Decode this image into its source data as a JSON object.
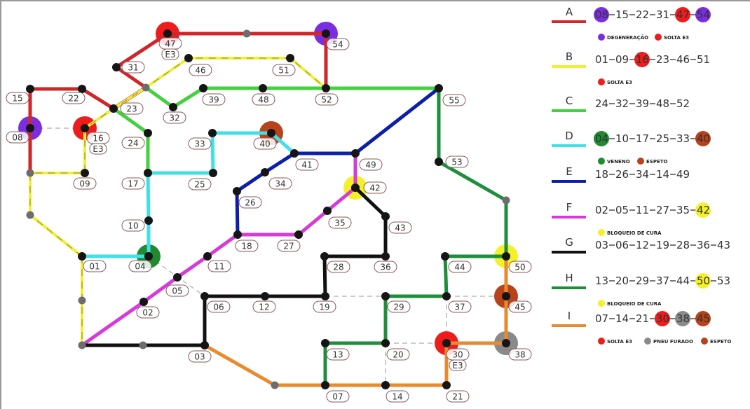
{
  "colors": {
    "A": "#d0262a",
    "B": "#f1ee3a",
    "C": "#43d13e",
    "D": "#3fe0e6",
    "E": "#0d1fa8",
    "F": "#d63ad8",
    "G": "#111111",
    "H": "#1f8e3c",
    "I": "#e88a2e",
    "degeneracao": "#7b2ee0",
    "solta_e3": "#ee1c1c",
    "veneno": "#1f8a30",
    "espeto": "#b8421a",
    "bloqueio_de_cura": "#f4f02a",
    "pneu_furado": "#8a8a8a",
    "node": "#151515",
    "junction": "#6d6d6d"
  },
  "legend": [
    {
      "letter": "A",
      "stops": [
        {
          "id": "08",
          "hazard": "degeneracao"
        },
        {
          "id": "15"
        },
        {
          "id": "22"
        },
        {
          "id": "31"
        },
        {
          "id": "47",
          "hazard": "solta_e3"
        },
        {
          "id": "54",
          "hazard": "degeneracao"
        }
      ],
      "notes": [
        {
          "text": "DEGENERAÇÃO",
          "hazard": "degeneracao"
        },
        {
          "text": "SOLTA E3",
          "hazard": "solta_e3"
        }
      ]
    },
    {
      "letter": "B",
      "stops": [
        {
          "id": "01"
        },
        {
          "id": "09"
        },
        {
          "id": "16",
          "hazard": "solta_e3"
        },
        {
          "id": "23"
        },
        {
          "id": "46"
        },
        {
          "id": "51"
        }
      ],
      "notes": [
        {
          "text": "SOLTA E3",
          "hazard": "solta_e3"
        }
      ]
    },
    {
      "letter": "C",
      "stops": [
        {
          "id": "24"
        },
        {
          "id": "32"
        },
        {
          "id": "39"
        },
        {
          "id": "48"
        },
        {
          "id": "52"
        }
      ],
      "notes": []
    },
    {
      "letter": "D",
      "stops": [
        {
          "id": "04",
          "hazard": "veneno"
        },
        {
          "id": "10"
        },
        {
          "id": "17"
        },
        {
          "id": "25"
        },
        {
          "id": "33"
        },
        {
          "id": "40",
          "hazard": "espeto"
        }
      ],
      "notes": [
        {
          "text": "VENENO",
          "hazard": "veneno"
        },
        {
          "text": "ESPETO",
          "hazard": "espeto"
        }
      ]
    },
    {
      "letter": "E",
      "stops": [
        {
          "id": "18"
        },
        {
          "id": "26"
        },
        {
          "id": "34"
        },
        {
          "id": "14"
        },
        {
          "id": "49"
        }
      ],
      "notes": []
    },
    {
      "letter": "F",
      "stops": [
        {
          "id": "02"
        },
        {
          "id": "05"
        },
        {
          "id": "11"
        },
        {
          "id": "27"
        },
        {
          "id": "35"
        },
        {
          "id": "42",
          "hazard": "bloqueio_de_cura"
        }
      ],
      "notes": [
        {
          "text": "BLOQUEIO DE CURA",
          "hazard": "bloqueio_de_cura"
        }
      ]
    },
    {
      "letter": "G",
      "stops": [
        {
          "id": "03"
        },
        {
          "id": "06"
        },
        {
          "id": "12"
        },
        {
          "id": "19"
        },
        {
          "id": "28"
        },
        {
          "id": "36"
        },
        {
          "id": "43"
        }
      ],
      "notes": []
    },
    {
      "letter": "H",
      "stops": [
        {
          "id": "13"
        },
        {
          "id": "20"
        },
        {
          "id": "29"
        },
        {
          "id": "37"
        },
        {
          "id": "44"
        },
        {
          "id": "50",
          "hazard": "bloqueio_de_cura"
        },
        {
          "id": "53"
        }
      ],
      "notes": [
        {
          "text": "BLOQUEIO DE CURA",
          "hazard": "bloqueio_de_cura"
        }
      ]
    },
    {
      "letter": "I",
      "stops": [
        {
          "id": "07"
        },
        {
          "id": "14"
        },
        {
          "id": "21"
        },
        {
          "id": "30",
          "hazard": "solta_e3"
        },
        {
          "id": "38",
          "hazard": "pneu_furado"
        },
        {
          "id": "45",
          "hazard": "espeto"
        }
      ],
      "notes": [
        {
          "text": "SOLTA E3",
          "hazard": "solta_e3"
        },
        {
          "text": "PNEU FURADO",
          "hazard": "pneu_furado"
        },
        {
          "text": "ESPETO",
          "hazard": "espeto"
        }
      ]
    }
  ],
  "map": {
    "node_labels": [
      "01",
      "02",
      "03",
      "04",
      "05",
      "06",
      "07",
      "08",
      "09",
      "10",
      "11",
      "12",
      "13",
      "14",
      "15",
      "16",
      "17",
      "18",
      "19",
      "20",
      "21",
      "22",
      "23",
      "24",
      "25",
      "26",
      "27",
      "28",
      "29",
      "30",
      "31",
      "32",
      "33",
      "34",
      "35",
      "36",
      "37",
      "38",
      "39",
      "40",
      "41",
      "42",
      "43",
      "44",
      "45",
      "46",
      "47",
      "48",
      "49",
      "50",
      "51",
      "52",
      "53",
      "54",
      "55"
    ],
    "hazards": {
      "08": "degeneracao",
      "47": "solta_e3",
      "54": "degeneracao",
      "16": "solta_e3",
      "40": "espeto",
      "04": "veneno",
      "42": "bloqueio_de_cura",
      "50": "bloqueio_de_cura",
      "45": "espeto",
      "30": "solta_e3",
      "38": "pneu_furado"
    },
    "tag_text": "E3",
    "tagged_nodes": [
      "47",
      "16",
      "30"
    ]
  }
}
